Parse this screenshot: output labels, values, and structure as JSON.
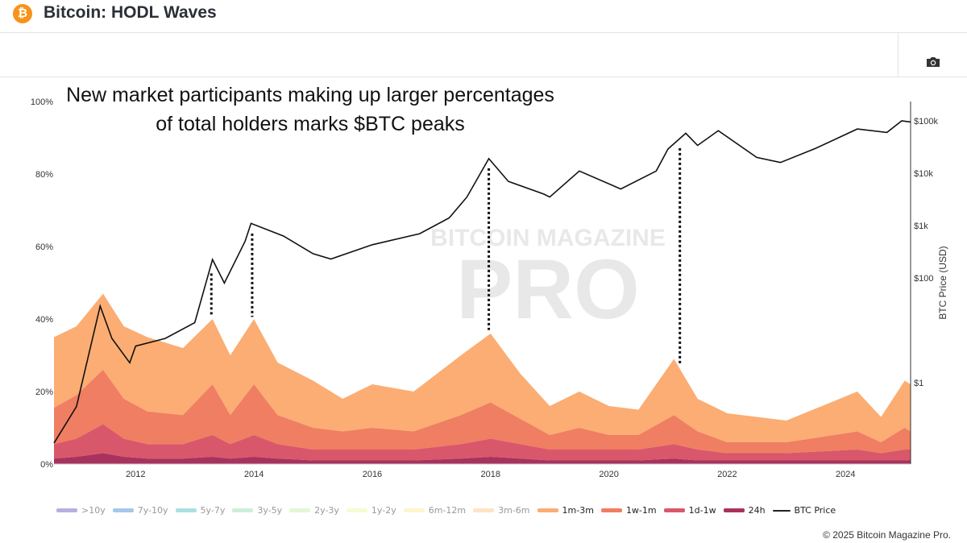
{
  "header": {
    "title": "Bitcoin: HODL Waves",
    "logo": "bitcoin-logo",
    "camera_icon": "camera-icon"
  },
  "annotation": "New market participants making up larger percentages of total holders marks $BTC peaks",
  "watermark": "BITCOIN MAGAZINE PRO",
  "copyright": "© 2025 Bitcoin Magazine Pro.",
  "chart_data": {
    "type": "area",
    "xlim": [
      2010.62,
      2025.1
    ],
    "x_ticks": [
      "2012",
      "2014",
      "2016",
      "2018",
      "2020",
      "2022",
      "2024"
    ],
    "ylim": [
      0,
      100
    ],
    "y_ticks": [
      "0%",
      "20%",
      "40%",
      "60%",
      "80%",
      "100%"
    ],
    "y2label": "BTC Price (USD)",
    "y2_scale": "log",
    "y2_ticks": [
      "$1",
      "$100",
      "$1k",
      "$10k",
      "$100k"
    ],
    "x": [
      2010.62,
      2011.0,
      2011.45,
      2011.8,
      2012.2,
      2012.8,
      2013.3,
      2013.6,
      2014.0,
      2014.4,
      2015.0,
      2015.5,
      2016.0,
      2016.7,
      2017.5,
      2018.0,
      2018.5,
      2019.0,
      2019.5,
      2020.0,
      2020.5,
      2021.1,
      2021.5,
      2022.0,
      2023.0,
      2024.2,
      2024.6,
      2025.0,
      2025.1
    ],
    "series": [
      {
        "name": "24h",
        "color": "#a8325e",
        "values": [
          1.5,
          2,
          3,
          2,
          1.5,
          1.5,
          2,
          1.5,
          2,
          1.5,
          1,
          1,
          1,
          1,
          1.5,
          2,
          1.5,
          1,
          1,
          1,
          1,
          1.5,
          1,
          1,
          1,
          1,
          1,
          1,
          1
        ]
      },
      {
        "name": "1d-1w",
        "color": "#d9576b",
        "values": [
          4,
          5,
          8,
          5,
          4,
          4,
          6,
          4,
          6,
          4,
          3,
          3,
          3,
          3,
          4,
          5,
          4,
          3,
          3,
          3,
          3,
          4,
          3,
          2,
          2,
          3,
          2,
          3,
          3
        ]
      },
      {
        "name": "1w-1m",
        "color": "#f07e62",
        "values": [
          10,
          12,
          15,
          11,
          9,
          8,
          14,
          8,
          14,
          8,
          6,
          5,
          6,
          5,
          8,
          10,
          7,
          4,
          6,
          4,
          4,
          8,
          5,
          3,
          3,
          5,
          3,
          6,
          5
        ]
      },
      {
        "name": "1m-3m",
        "color": "#fbad73",
        "values": [
          19.5,
          19,
          21,
          20,
          20.5,
          18.5,
          18,
          16.5,
          18,
          14.5,
          13,
          9,
          12,
          11,
          16.5,
          19,
          12.5,
          8,
          10,
          8,
          7,
          15.5,
          9,
          8,
          6,
          11,
          7,
          13,
          13
        ]
      }
    ],
    "btc_price": {
      "name": "BTC Price",
      "x": [
        2010.62,
        2011.0,
        2011.4,
        2011.6,
        2011.9,
        2012.0,
        2012.5,
        2013.0,
        2013.3,
        2013.5,
        2013.85,
        2013.95,
        2014.5,
        2015.0,
        2015.3,
        2016.0,
        2016.8,
        2017.3,
        2017.6,
        2017.97,
        2018.3,
        2018.9,
        2019.0,
        2019.5,
        2020.2,
        2020.8,
        2021.0,
        2021.3,
        2021.5,
        2021.85,
        2022.5,
        2022.9,
        2023.5,
        2024.2,
        2024.7,
        2024.95,
        2025.1
      ],
      "values": [
        0.07,
        0.35,
        29,
        7,
        2.4,
        5,
        7,
        14,
        225,
        80,
        500,
        1100,
        630,
        290,
        230,
        430,
        700,
        1400,
        3500,
        19000,
        7000,
        4000,
        3500,
        11000,
        5000,
        11000,
        29000,
        58000,
        34000,
        65000,
        20000,
        16000,
        30000,
        70000,
        60000,
        100000,
        95000
      ]
    },
    "peak_markers": [
      2013.28,
      2013.97,
      2017.97,
      2021.2
    ],
    "legend": [
      {
        "name": ">10y",
        "color": "#b9aee0",
        "active": false
      },
      {
        "name": "7y-10y",
        "color": "#a6c8ea",
        "active": false
      },
      {
        "name": "5y-7y",
        "color": "#a9e0e0",
        "active": false
      },
      {
        "name": "3y-5y",
        "color": "#cdeed8",
        "active": false
      },
      {
        "name": "2y-3y",
        "color": "#e4f6d4",
        "active": false
      },
      {
        "name": "1y-2y",
        "color": "#f6fbd2",
        "active": false
      },
      {
        "name": "6m-12m",
        "color": "#fdf6cc",
        "active": false
      },
      {
        "name": "3m-6m",
        "color": "#fde4c4",
        "active": false
      },
      {
        "name": "1m-3m",
        "color": "#fbad73",
        "active": true
      },
      {
        "name": "1w-1m",
        "color": "#f07e62",
        "active": true
      },
      {
        "name": "1d-1w",
        "color": "#d9576b",
        "active": true
      },
      {
        "name": "24h",
        "color": "#a8325e",
        "active": true
      },
      {
        "name": "BTC Price",
        "color": "#222222",
        "active": true,
        "line": true
      }
    ]
  }
}
